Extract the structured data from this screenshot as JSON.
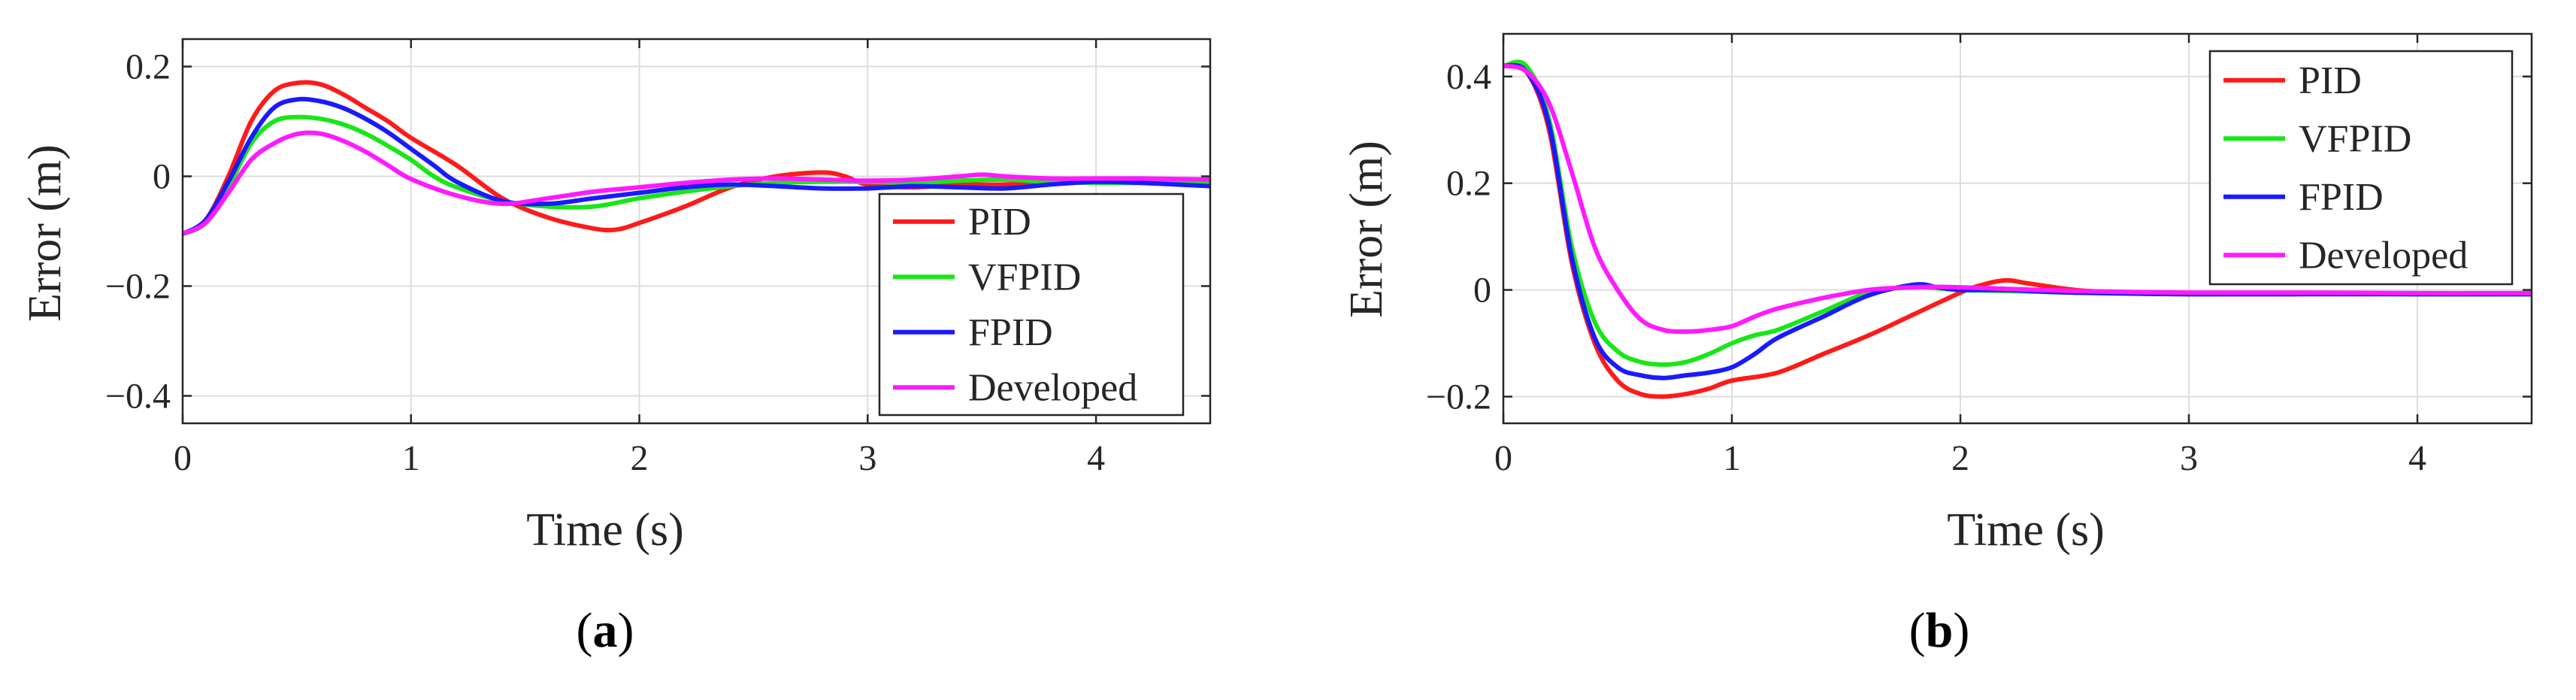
{
  "chart_data": [
    {
      "type": "line",
      "xlabel": "Time (s)",
      "ylabel": "Error (m)",
      "xlim": [
        0,
        4.5
      ],
      "ylim": [
        -0.45,
        0.25
      ],
      "xticks": [
        0,
        1,
        2,
        3,
        4
      ],
      "xtick_labels": [
        "0",
        "1",
        "2",
        "3",
        "4"
      ],
      "yticks": [
        0.2,
        0,
        -0.2,
        -0.4
      ],
      "ytick_labels": [
        "0.2",
        "0",
        "−0.2",
        "−0.4"
      ],
      "grid": true,
      "legend_position": "bottom-right",
      "caption": {
        "open": "(",
        "letter": "a",
        "close": ")"
      },
      "series": [
        {
          "name": "PID",
          "color": "#ff1a1a",
          "x": [
            0,
            0.1,
            0.2,
            0.3,
            0.4,
            0.5,
            0.6,
            0.7,
            0.8,
            0.9,
            1.0,
            1.2,
            1.4,
            1.6,
            1.8,
            1.9,
            2.0,
            2.2,
            2.4,
            2.6,
            2.8,
            2.9,
            3.0,
            3.2,
            3.4,
            3.6,
            3.8,
            4.0,
            4.2,
            4.5
          ],
          "y": [
            -0.105,
            -0.08,
            0.0,
            0.1,
            0.155,
            0.17,
            0.168,
            0.15,
            0.125,
            0.1,
            0.07,
            0.02,
            -0.04,
            -0.075,
            -0.095,
            -0.097,
            -0.085,
            -0.055,
            -0.02,
            0.0,
            0.007,
            0.0,
            -0.015,
            -0.02,
            -0.015,
            -0.015,
            -0.01,
            -0.005,
            -0.005,
            -0.01
          ]
        },
        {
          "name": "VFPID",
          "color": "#19e619",
          "x": [
            0,
            0.1,
            0.2,
            0.3,
            0.4,
            0.5,
            0.6,
            0.7,
            0.8,
            0.9,
            1.0,
            1.1,
            1.2,
            1.4,
            1.6,
            1.8,
            2.0,
            2.2,
            2.4,
            2.6,
            2.8,
            3.0,
            3.2,
            3.4,
            3.6,
            3.8,
            4.0,
            4.2,
            4.5
          ],
          "y": [
            -0.105,
            -0.085,
            -0.02,
            0.06,
            0.1,
            0.108,
            0.105,
            0.095,
            0.078,
            0.055,
            0.03,
            0.0,
            -0.02,
            -0.045,
            -0.055,
            -0.055,
            -0.04,
            -0.028,
            -0.018,
            -0.012,
            -0.01,
            -0.01,
            -0.012,
            -0.008,
            -0.006,
            -0.01,
            -0.012,
            -0.012,
            -0.012
          ]
        },
        {
          "name": "FPID",
          "color": "#1a1aff",
          "x": [
            0,
            0.1,
            0.2,
            0.3,
            0.4,
            0.5,
            0.6,
            0.7,
            0.8,
            0.9,
            1.0,
            1.1,
            1.2,
            1.4,
            1.6,
            1.8,
            2.0,
            2.2,
            2.4,
            2.6,
            2.8,
            3.0,
            3.2,
            3.4,
            3.6,
            3.8,
            4.0,
            4.2,
            4.5
          ],
          "y": [
            -0.105,
            -0.08,
            -0.01,
            0.07,
            0.125,
            0.14,
            0.137,
            0.125,
            0.105,
            0.08,
            0.05,
            0.02,
            -0.01,
            -0.045,
            -0.05,
            -0.04,
            -0.03,
            -0.02,
            -0.015,
            -0.018,
            -0.022,
            -0.022,
            -0.018,
            -0.02,
            -0.022,
            -0.015,
            -0.01,
            -0.012,
            -0.018
          ]
        },
        {
          "name": "Developed",
          "color": "#ff1aff",
          "x": [
            0,
            0.1,
            0.2,
            0.3,
            0.4,
            0.5,
            0.6,
            0.7,
            0.8,
            0.9,
            1.0,
            1.2,
            1.4,
            1.6,
            1.8,
            2.0,
            2.2,
            2.4,
            2.6,
            2.8,
            3.0,
            3.2,
            3.4,
            3.5,
            3.6,
            3.8,
            4.0,
            4.2,
            4.5
          ],
          "y": [
            -0.105,
            -0.085,
            -0.03,
            0.03,
            0.06,
            0.077,
            0.078,
            0.065,
            0.045,
            0.02,
            -0.005,
            -0.035,
            -0.05,
            -0.04,
            -0.028,
            -0.02,
            -0.012,
            -0.006,
            -0.004,
            -0.006,
            -0.008,
            -0.006,
            0.0,
            0.003,
            0.0,
            -0.004,
            -0.004,
            -0.004,
            -0.006
          ]
        }
      ]
    },
    {
      "type": "line",
      "xlabel": "Time (s)",
      "ylabel": "Error (m)",
      "xlim": [
        0,
        4.5
      ],
      "ylim": [
        -0.25,
        0.48
      ],
      "xticks": [
        0,
        1,
        2,
        3,
        4
      ],
      "xtick_labels": [
        "0",
        "1",
        "2",
        "3",
        "4"
      ],
      "yticks": [
        0.4,
        0.2,
        0,
        -0.2
      ],
      "ytick_labels": [
        "0.4",
        "0.2",
        "0",
        "−0.2"
      ],
      "grid": true,
      "legend_position": "top-right",
      "caption": {
        "open": "(",
        "letter": "b",
        "close": ")"
      },
      "series": [
        {
          "name": "PID",
          "color": "#ff1a1a",
          "x": [
            0,
            0.1,
            0.2,
            0.3,
            0.4,
            0.5,
            0.6,
            0.7,
            0.8,
            0.9,
            1.0,
            1.2,
            1.4,
            1.6,
            1.8,
            2.0,
            2.1,
            2.2,
            2.3,
            2.5,
            2.7,
            3.0,
            3.5,
            4.0,
            4.5
          ],
          "y": [
            0.42,
            0.41,
            0.3,
            0.05,
            -0.1,
            -0.17,
            -0.195,
            -0.2,
            -0.195,
            -0.185,
            -0.17,
            -0.155,
            -0.12,
            -0.085,
            -0.045,
            -0.005,
            0.01,
            0.018,
            0.012,
            0.0,
            -0.005,
            -0.008,
            -0.006,
            -0.008,
            -0.008
          ]
        },
        {
          "name": "VFPID",
          "color": "#19e619",
          "x": [
            0,
            0.1,
            0.2,
            0.3,
            0.4,
            0.5,
            0.6,
            0.7,
            0.8,
            0.9,
            1.0,
            1.1,
            1.2,
            1.4,
            1.6,
            1.8,
            2.0,
            2.2,
            2.5,
            3.0,
            3.5,
            4.0,
            4.5
          ],
          "y": [
            0.42,
            0.42,
            0.32,
            0.08,
            -0.06,
            -0.115,
            -0.135,
            -0.14,
            -0.135,
            -0.12,
            -0.1,
            -0.085,
            -0.075,
            -0.04,
            -0.005,
            0.005,
            0.0,
            -0.002,
            -0.005,
            -0.008,
            -0.006,
            -0.008,
            -0.008
          ]
        },
        {
          "name": "FPID",
          "color": "#1a1aff",
          "x": [
            0,
            0.1,
            0.2,
            0.3,
            0.4,
            0.5,
            0.6,
            0.7,
            0.8,
            0.9,
            1.0,
            1.1,
            1.2,
            1.4,
            1.6,
            1.8,
            1.9,
            2.0,
            2.2,
            2.5,
            3.0,
            3.5,
            4.0,
            4.5
          ],
          "y": [
            0.42,
            0.41,
            0.31,
            0.06,
            -0.09,
            -0.145,
            -0.16,
            -0.165,
            -0.16,
            -0.155,
            -0.145,
            -0.12,
            -0.09,
            -0.05,
            -0.01,
            0.01,
            0.005,
            0.0,
            0.0,
            -0.005,
            -0.008,
            -0.008,
            -0.008,
            -0.008
          ]
        },
        {
          "name": "Developed",
          "color": "#ff1aff",
          "x": [
            0,
            0.1,
            0.2,
            0.3,
            0.4,
            0.5,
            0.6,
            0.7,
            0.8,
            0.9,
            1.0,
            1.1,
            1.2,
            1.4,
            1.6,
            1.8,
            2.0,
            2.5,
            3.0,
            3.5,
            4.0,
            4.5
          ],
          "y": [
            0.42,
            0.41,
            0.35,
            0.22,
            0.08,
            0.0,
            -0.055,
            -0.075,
            -0.078,
            -0.075,
            -0.068,
            -0.05,
            -0.035,
            -0.015,
            0.0,
            0.005,
            0.005,
            -0.002,
            -0.005,
            -0.005,
            -0.006,
            -0.006
          ]
        }
      ]
    }
  ]
}
